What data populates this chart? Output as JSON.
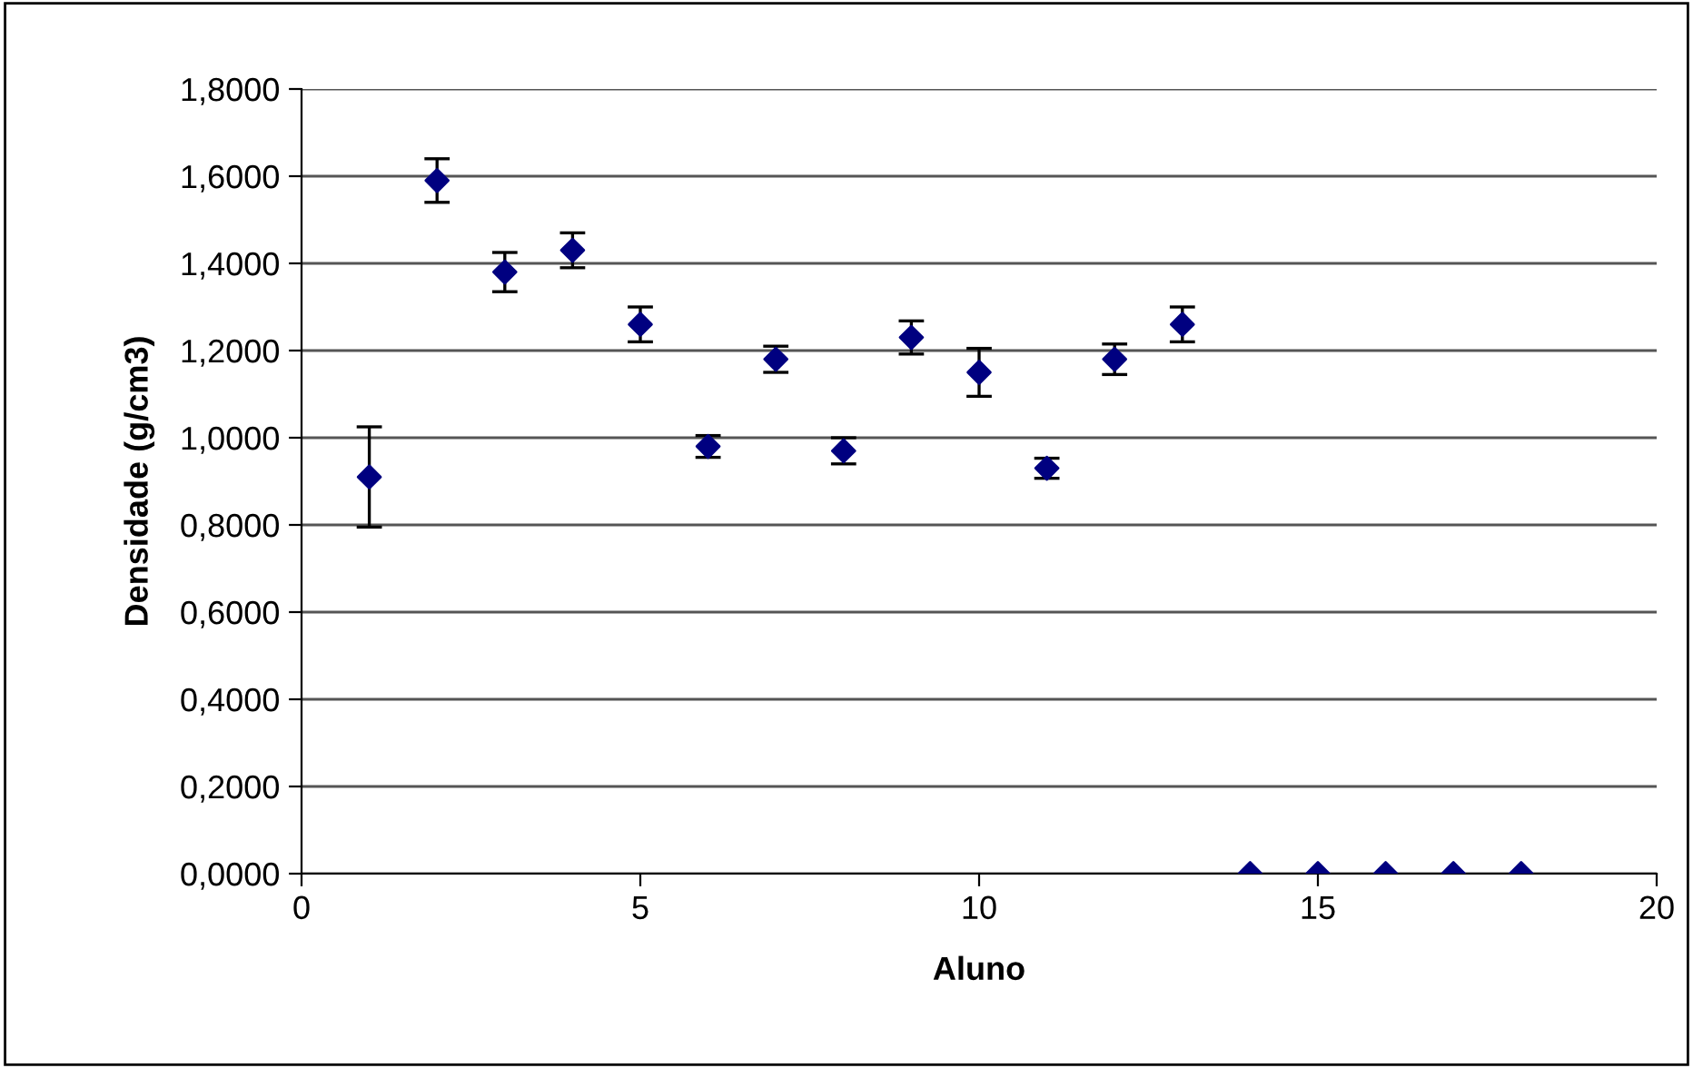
{
  "chart_data": {
    "type": "scatter",
    "xlabel": "Aluno",
    "ylabel": "Densidade (g/cm3)",
    "x": [
      1,
      2,
      3,
      4,
      5,
      6,
      7,
      8,
      9,
      10,
      11,
      12,
      13,
      14,
      15,
      16,
      17,
      18
    ],
    "series": [
      {
        "color": "#000080",
        "values": [
          0.91,
          1.59,
          1.38,
          1.43,
          1.26,
          0.98,
          1.18,
          0.97,
          1.23,
          1.15,
          0.93,
          1.18,
          1.26,
          0,
          0,
          0,
          0,
          0
        ],
        "errors": [
          0.115,
          0.05,
          0.045,
          0.04,
          0.04,
          0.025,
          0.03,
          0.03,
          0.038,
          0.055,
          0.023,
          0.035,
          0.04,
          null,
          null,
          null,
          null,
          null
        ]
      }
    ],
    "xlim": [
      0,
      20
    ],
    "xticks": [
      0,
      5,
      10,
      15,
      20
    ],
    "ylim": [
      0,
      1.8
    ],
    "yticks": [
      {
        "value": 0,
        "label": "0,0000"
      },
      {
        "value": 0.2,
        "label": "0,2000"
      },
      {
        "value": 0.4,
        "label": "0,4000"
      },
      {
        "value": 0.6,
        "label": "0,6000"
      },
      {
        "value": 0.8,
        "label": "0,8000"
      },
      {
        "value": 1.0,
        "label": "1,0000"
      },
      {
        "value": 1.2,
        "label": "1,2000"
      },
      {
        "value": 1.4,
        "label": "1,4000"
      },
      {
        "value": 1.6,
        "label": "1,6000"
      },
      {
        "value": 1.8,
        "label": "1,8000"
      }
    ],
    "grid": "y",
    "marker": "diamond",
    "legend": false
  }
}
